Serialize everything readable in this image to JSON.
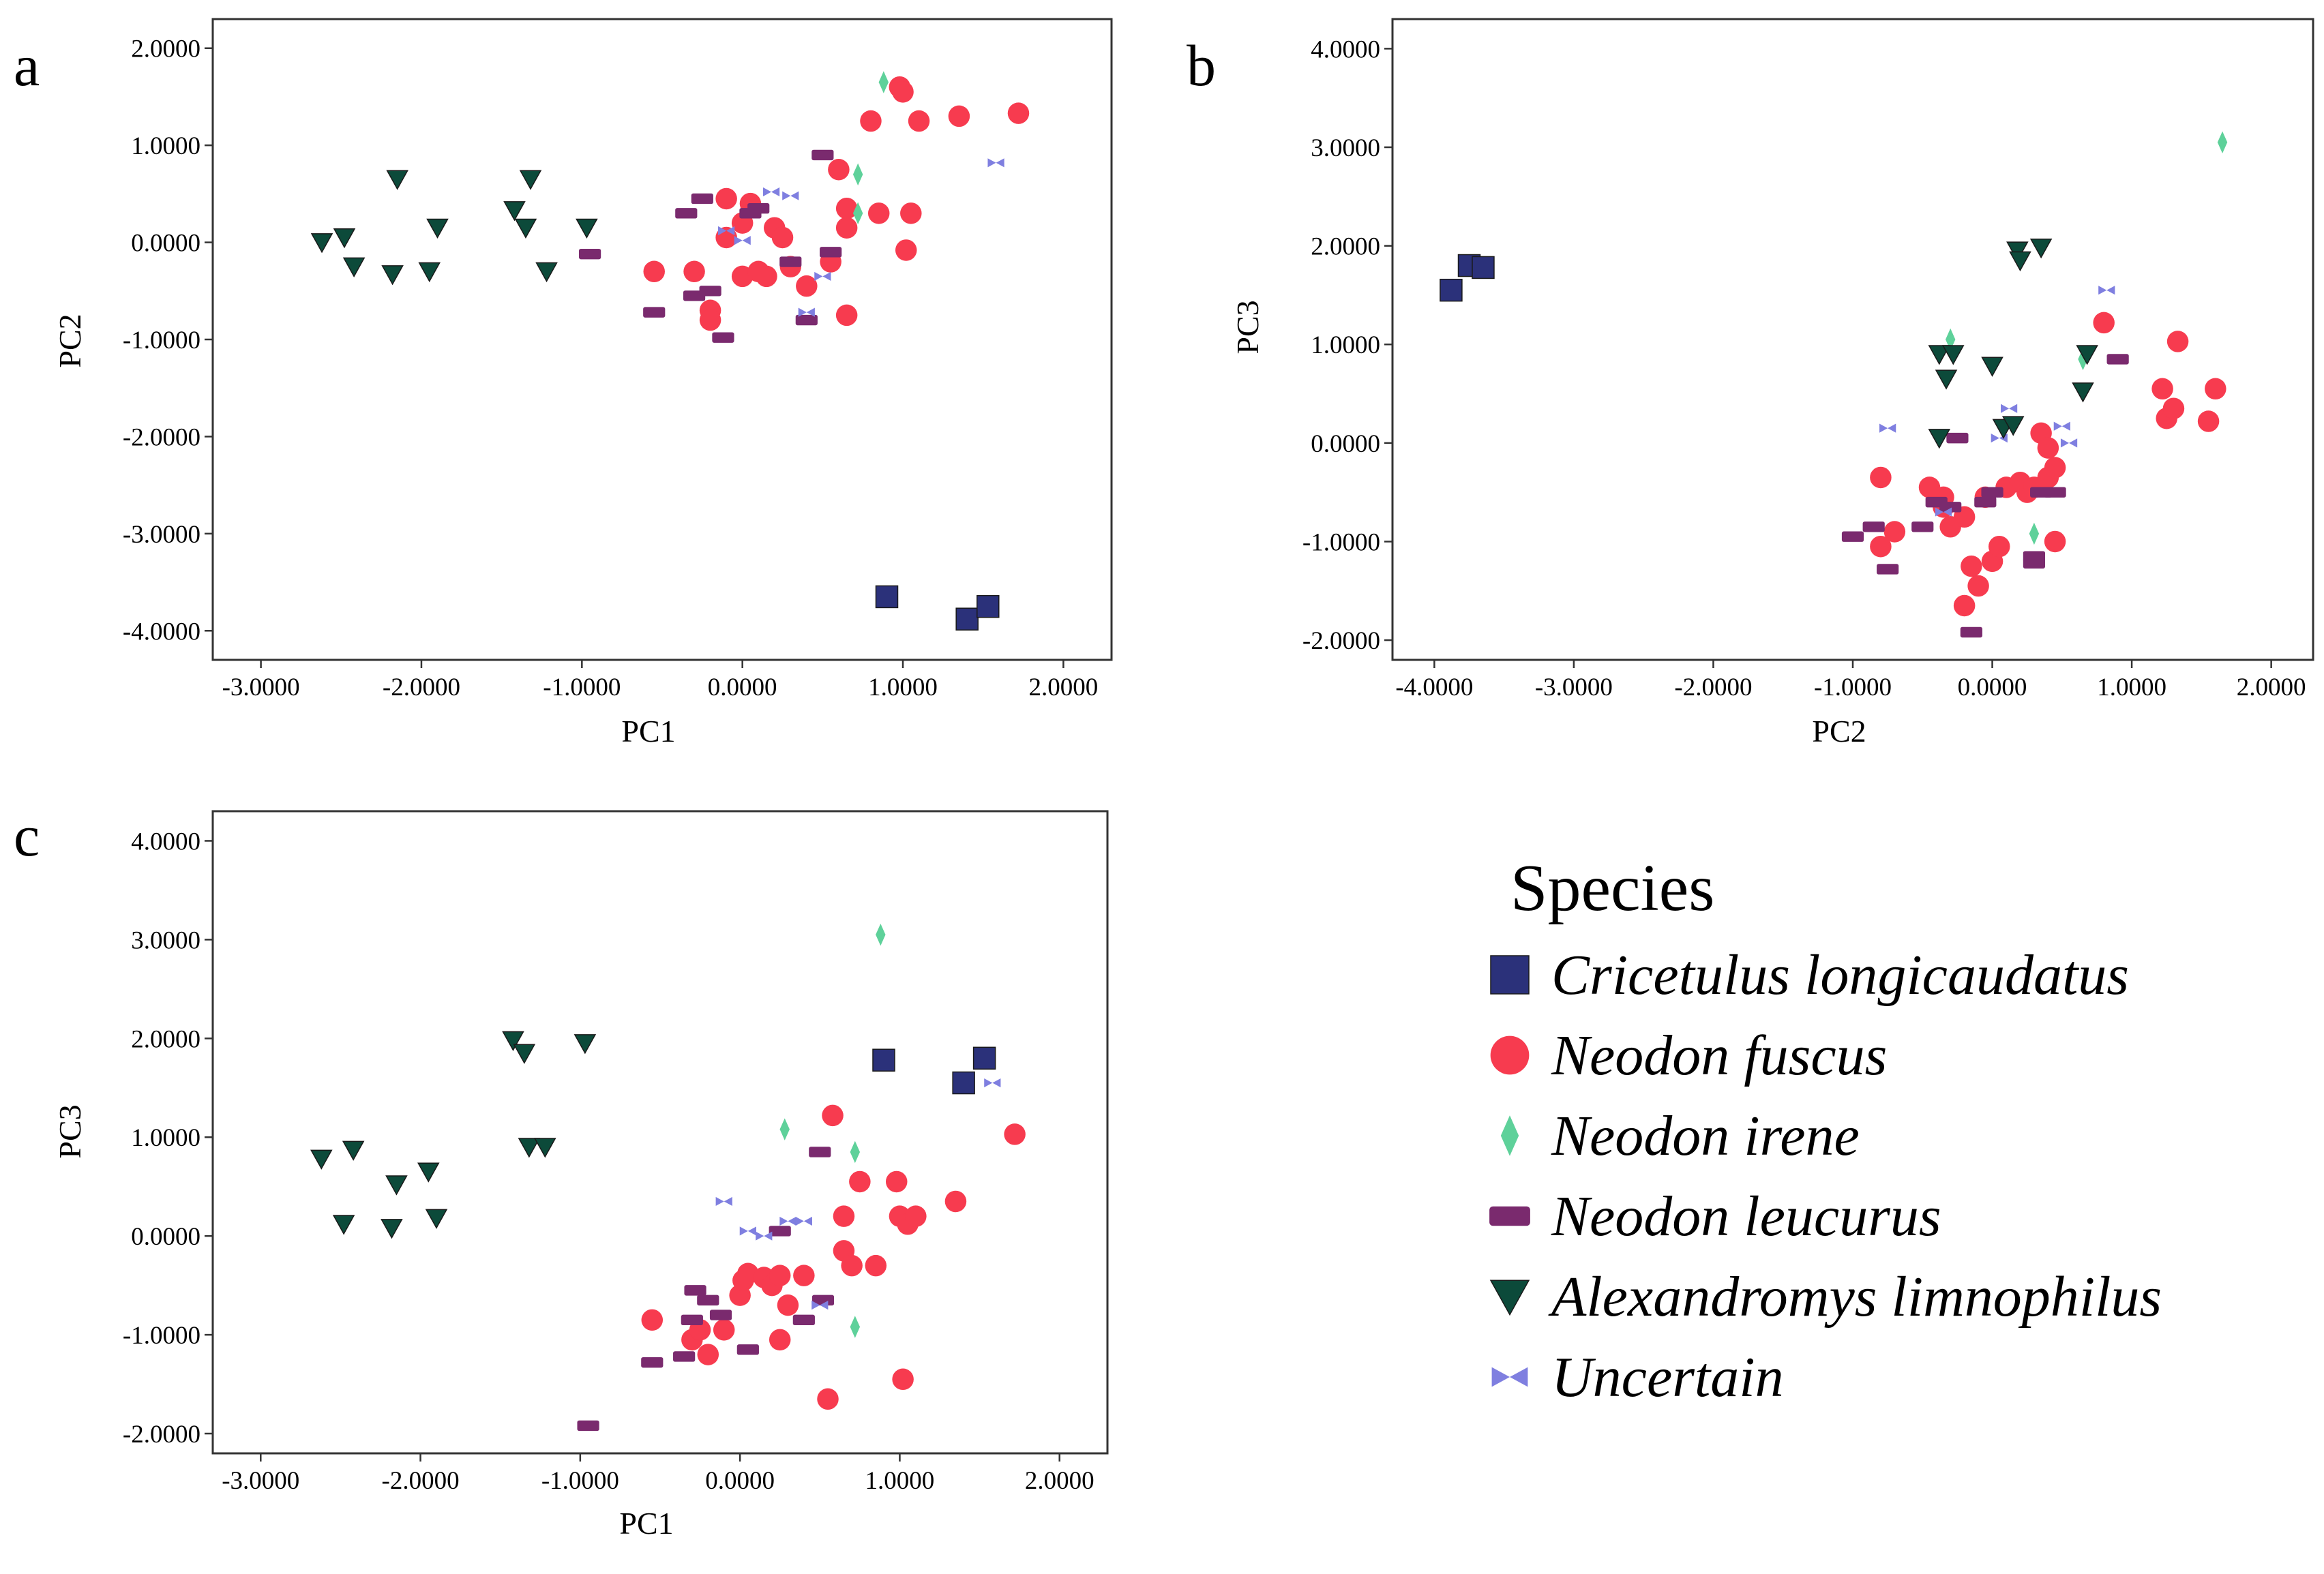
{
  "legend": {
    "title": "Species",
    "entries": [
      {
        "key": "cricetulus",
        "label": "Cricetulus longicaudatus",
        "marker": "square",
        "color": "#2b317a"
      },
      {
        "key": "fuscus",
        "label": "Neodon fuscus",
        "marker": "circle",
        "color": "#f73b4f"
      },
      {
        "key": "irene",
        "label": "Neodon irene",
        "marker": "diamond",
        "color": "#5ed19a"
      },
      {
        "key": "leucurus",
        "label": "Neodon leucurus",
        "marker": "dash",
        "color": "#7a2a6e"
      },
      {
        "key": "limnophilus",
        "label": "Alexandromys limnophilus",
        "marker": "triangle-down",
        "color": "#0c4a3a"
      },
      {
        "key": "uncertain",
        "label": "Uncertain",
        "marker": "bowtie",
        "color": "#7f7fe0"
      }
    ]
  },
  "chart_data": [
    {
      "id": "a",
      "letter": "a",
      "type": "scatter",
      "xlabel": "PC1",
      "ylabel": "PC2",
      "xlim": [
        -3.3,
        2.3
      ],
      "ylim": [
        -4.3,
        2.3
      ],
      "xticks": [
        -3,
        -2,
        -1,
        0,
        1,
        2
      ],
      "xtick_labels": [
        "-3.0000",
        "-2.0000",
        "-1.0000",
        "0.0000",
        "1.0000",
        "2.0000"
      ],
      "yticks": [
        -4,
        -3,
        -2,
        -1,
        0,
        1,
        2
      ],
      "ytick_labels": [
        "-4.0000",
        "-3.0000",
        "-2.0000",
        "-1.0000",
        "0.0000",
        "1.0000",
        "2.0000"
      ],
      "series": {
        "cricetulus": [
          [
            0.9,
            -3.65
          ],
          [
            1.4,
            -3.88
          ],
          [
            1.53,
            -3.75
          ]
        ],
        "fuscus": [
          [
            -0.55,
            -0.3
          ],
          [
            -0.3,
            -0.3
          ],
          [
            -0.2,
            -0.7
          ],
          [
            -0.2,
            -0.8
          ],
          [
            -0.1,
            0.45
          ],
          [
            -0.1,
            0.05
          ],
          [
            0.0,
            -0.35
          ],
          [
            0.0,
            0.2
          ],
          [
            0.05,
            0.4
          ],
          [
            0.1,
            -0.3
          ],
          [
            0.15,
            -0.35
          ],
          [
            0.2,
            0.15
          ],
          [
            0.25,
            0.05
          ],
          [
            0.3,
            -0.25
          ],
          [
            0.4,
            -0.45
          ],
          [
            0.55,
            -0.2
          ],
          [
            0.6,
            0.75
          ],
          [
            0.65,
            0.35
          ],
          [
            0.65,
            0.15
          ],
          [
            0.65,
            -0.75
          ],
          [
            0.8,
            1.25
          ],
          [
            0.85,
            0.3
          ],
          [
            0.98,
            1.6
          ],
          [
            1.0,
            1.55
          ],
          [
            1.02,
            -0.08
          ],
          [
            1.05,
            0.3
          ],
          [
            1.1,
            1.25
          ],
          [
            1.35,
            1.3
          ],
          [
            1.72,
            1.33
          ]
        ],
        "irene": [
          [
            0.72,
            0.7
          ],
          [
            0.72,
            0.3
          ],
          [
            0.88,
            1.65
          ]
        ],
        "leucurus": [
          [
            -0.95,
            -0.12
          ],
          [
            -0.55,
            -0.72
          ],
          [
            -0.35,
            0.3
          ],
          [
            -0.3,
            -0.55
          ],
          [
            -0.25,
            0.45
          ],
          [
            -0.2,
            -0.5
          ],
          [
            -0.12,
            -0.98
          ],
          [
            0.05,
            0.3
          ],
          [
            0.1,
            0.35
          ],
          [
            0.3,
            -0.2
          ],
          [
            0.4,
            -0.8
          ],
          [
            0.5,
            0.9
          ],
          [
            0.55,
            -0.1
          ]
        ],
        "limnophilus": [
          [
            -2.62,
            0.0
          ],
          [
            -2.48,
            0.05
          ],
          [
            -2.42,
            -0.25
          ],
          [
            -2.18,
            -0.33
          ],
          [
            -2.15,
            0.65
          ],
          [
            -1.95,
            -0.3
          ],
          [
            -1.9,
            0.15
          ],
          [
            -1.42,
            0.33
          ],
          [
            -1.35,
            0.15
          ],
          [
            -1.32,
            0.65
          ],
          [
            -1.22,
            -0.3
          ],
          [
            -0.97,
            0.15
          ]
        ],
        "uncertain": [
          [
            -0.1,
            0.12
          ],
          [
            0.0,
            0.02
          ],
          [
            0.18,
            0.52
          ],
          [
            0.3,
            0.48
          ],
          [
            0.4,
            -0.72
          ],
          [
            0.5,
            -0.35
          ],
          [
            1.58,
            0.82
          ]
        ]
      }
    },
    {
      "id": "b",
      "letter": "b",
      "type": "scatter",
      "xlabel": "PC2",
      "ylabel": "PC3",
      "xlim": [
        -4.3,
        2.3
      ],
      "ylim": [
        -2.2,
        4.3
      ],
      "xticks": [
        -4,
        -3,
        -2,
        -1,
        0,
        1,
        2
      ],
      "xtick_labels": [
        "-4.0000",
        "-3.0000",
        "-2.0000",
        "-1.0000",
        "0.0000",
        "1.0000",
        "2.0000"
      ],
      "yticks": [
        -2,
        -1,
        0,
        1,
        2,
        3,
        4
      ],
      "ytick_labels": [
        "-2.0000",
        "-1.0000",
        "0.0000",
        "1.0000",
        "2.0000",
        "3.0000",
        "4.0000"
      ],
      "series": {
        "cricetulus": [
          [
            -3.88,
            1.55
          ],
          [
            -3.75,
            1.8
          ],
          [
            -3.65,
            1.78
          ]
        ],
        "fuscus": [
          [
            -0.8,
            -0.35
          ],
          [
            -0.8,
            -1.05
          ],
          [
            -0.7,
            -0.9
          ],
          [
            -0.45,
            -0.45
          ],
          [
            -0.35,
            -0.55
          ],
          [
            -0.35,
            -0.65
          ],
          [
            -0.3,
            -0.85
          ],
          [
            -0.2,
            -0.75
          ],
          [
            -0.2,
            -1.65
          ],
          [
            -0.15,
            -1.25
          ],
          [
            -0.1,
            -1.45
          ],
          [
            -0.05,
            -0.55
          ],
          [
            0.0,
            -1.2
          ],
          [
            0.05,
            -1.05
          ],
          [
            0.1,
            -0.45
          ],
          [
            0.2,
            -0.4
          ],
          [
            0.25,
            -0.5
          ],
          [
            0.3,
            -0.45
          ],
          [
            0.35,
            0.1
          ],
          [
            0.4,
            -0.05
          ],
          [
            0.4,
            -0.35
          ],
          [
            0.45,
            -0.25
          ],
          [
            0.45,
            -1.0
          ],
          [
            0.8,
            1.22
          ],
          [
            1.22,
            0.55
          ],
          [
            1.25,
            0.25
          ],
          [
            1.3,
            0.35
          ],
          [
            1.33,
            1.03
          ],
          [
            1.55,
            0.22
          ],
          [
            1.6,
            0.55
          ]
        ],
        "irene": [
          [
            -0.3,
            1.05
          ],
          [
            0.3,
            -0.92
          ],
          [
            0.65,
            0.85
          ],
          [
            1.65,
            3.05
          ]
        ],
        "leucurus": [
          [
            -1.0,
            -0.95
          ],
          [
            -0.85,
            -0.85
          ],
          [
            -0.75,
            -1.28
          ],
          [
            -0.5,
            -0.85
          ],
          [
            -0.4,
            -0.6
          ],
          [
            -0.3,
            -0.65
          ],
          [
            -0.25,
            0.05
          ],
          [
            -0.15,
            -1.92
          ],
          [
            -0.05,
            -0.6
          ],
          [
            0.0,
            -0.5
          ],
          [
            0.3,
            -1.15
          ],
          [
            0.3,
            -1.22
          ],
          [
            0.35,
            -0.5
          ],
          [
            0.45,
            -0.5
          ],
          [
            0.9,
            0.85
          ]
        ],
        "limnophilus": [
          [
            -0.38,
            0.05
          ],
          [
            -0.38,
            0.9
          ],
          [
            -0.33,
            0.65
          ],
          [
            -0.28,
            0.9
          ],
          [
            0.0,
            0.78
          ],
          [
            0.08,
            0.15
          ],
          [
            0.15,
            0.18
          ],
          [
            0.18,
            1.95
          ],
          [
            0.2,
            1.85
          ],
          [
            0.35,
            1.98
          ],
          [
            0.65,
            0.52
          ],
          [
            0.68,
            0.9
          ]
        ],
        "uncertain": [
          [
            -0.75,
            0.15
          ],
          [
            -0.35,
            -0.7
          ],
          [
            0.05,
            0.05
          ],
          [
            0.12,
            0.35
          ],
          [
            0.5,
            0.17
          ],
          [
            0.55,
            0.0
          ],
          [
            0.82,
            1.55
          ]
        ]
      }
    },
    {
      "id": "c",
      "letter": "c",
      "type": "scatter",
      "xlabel": "PC1",
      "ylabel": "PC3",
      "xlim": [
        -3.3,
        2.3
      ],
      "ylim": [
        -2.2,
        4.3
      ],
      "xticks": [
        -3,
        -2,
        -1,
        0,
        1,
        2
      ],
      "xtick_labels": [
        "-3.0000",
        "-2.0000",
        "-1.0000",
        "0.0000",
        "1.0000",
        "2.0000"
      ],
      "yticks": [
        -2,
        -1,
        0,
        1,
        2,
        3,
        4
      ],
      "ytick_labels": [
        "-2.0000",
        "-1.0000",
        "0.0000",
        "1.0000",
        "2.0000",
        "3.0000",
        "4.0000"
      ],
      "series": {
        "cricetulus": [
          [
            0.9,
            1.78
          ],
          [
            1.4,
            1.55
          ],
          [
            1.53,
            1.8
          ]
        ],
        "fuscus": [
          [
            -0.55,
            -0.85
          ],
          [
            -0.3,
            -1.05
          ],
          [
            -0.25,
            -0.95
          ],
          [
            -0.2,
            -1.2
          ],
          [
            -0.1,
            -0.95
          ],
          [
            0.0,
            -0.6
          ],
          [
            0.02,
            -0.45
          ],
          [
            0.05,
            -0.38
          ],
          [
            0.15,
            -0.42
          ],
          [
            0.2,
            -0.5
          ],
          [
            0.25,
            -0.4
          ],
          [
            0.25,
            -1.05
          ],
          [
            0.3,
            -0.7
          ],
          [
            0.4,
            -0.4
          ],
          [
            0.55,
            -1.65
          ],
          [
            0.58,
            1.22
          ],
          [
            0.65,
            0.2
          ],
          [
            0.65,
            -0.15
          ],
          [
            0.7,
            -0.3
          ],
          [
            0.75,
            0.55
          ],
          [
            0.85,
            -0.3
          ],
          [
            0.98,
            0.55
          ],
          [
            1.0,
            0.2
          ],
          [
            1.02,
            -1.45
          ],
          [
            1.05,
            0.12
          ],
          [
            1.1,
            0.2
          ],
          [
            1.35,
            0.35
          ],
          [
            1.72,
            1.03
          ]
        ],
        "irene": [
          [
            0.28,
            1.08
          ],
          [
            0.72,
            0.85
          ],
          [
            0.72,
            -0.92
          ],
          [
            0.88,
            3.05
          ]
        ],
        "leucurus": [
          [
            -0.95,
            -1.92
          ],
          [
            -0.55,
            -1.28
          ],
          [
            -0.35,
            -1.22
          ],
          [
            -0.3,
            -0.85
          ],
          [
            -0.28,
            -0.55
          ],
          [
            -0.2,
            -0.65
          ],
          [
            -0.12,
            -0.8
          ],
          [
            0.05,
            -1.15
          ],
          [
            0.25,
            0.05
          ],
          [
            0.4,
            -0.85
          ],
          [
            0.5,
            0.85
          ],
          [
            0.52,
            -0.65
          ]
        ],
        "limnophilus": [
          [
            -2.62,
            0.78
          ],
          [
            -2.48,
            0.12
          ],
          [
            -2.42,
            0.87
          ],
          [
            -2.18,
            0.08
          ],
          [
            -2.15,
            0.52
          ],
          [
            -1.95,
            0.65
          ],
          [
            -1.9,
            0.18
          ],
          [
            -1.42,
            1.98
          ],
          [
            -1.35,
            1.85
          ],
          [
            -1.32,
            0.9
          ],
          [
            -1.22,
            0.9
          ],
          [
            -0.97,
            1.95
          ]
        ],
        "uncertain": [
          [
            -0.1,
            0.35
          ],
          [
            0.05,
            0.05
          ],
          [
            0.15,
            0.0
          ],
          [
            0.3,
            0.15
          ],
          [
            0.4,
            0.15
          ],
          [
            0.5,
            -0.7
          ],
          [
            1.58,
            1.55
          ]
        ]
      }
    }
  ]
}
